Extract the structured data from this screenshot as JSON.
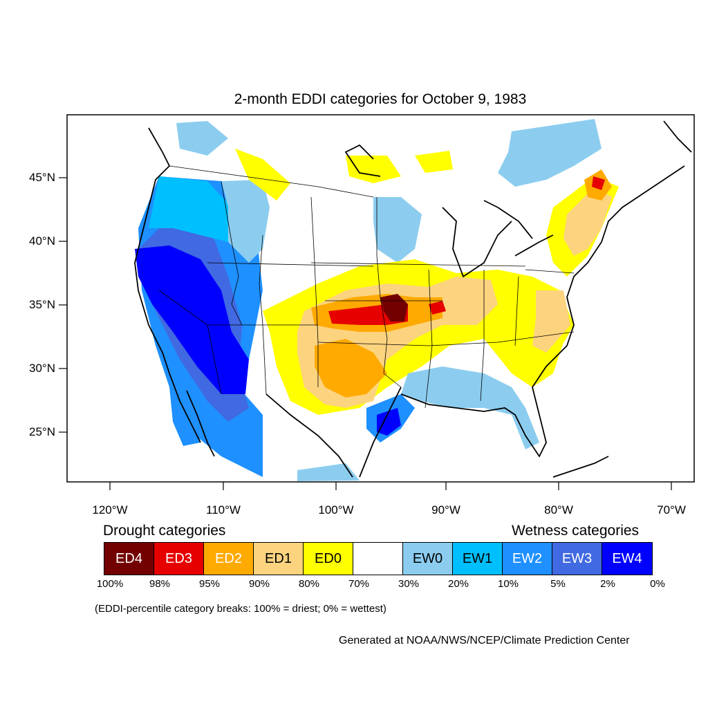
{
  "title": "2-month EDDI categories for October 9, 1983",
  "lat_labels": [
    "45°N",
    "40°N",
    "35°N",
    "30°N",
    "25°N"
  ],
  "lon_labels": [
    "120°W",
    "110°W",
    "100°W",
    "90°W",
    "80°W",
    "70°W"
  ],
  "legend": {
    "drought_heading": "Drought categories",
    "wetness_heading": "Wetness categories",
    "categories": [
      {
        "label": "ED4",
        "color": "#730000",
        "text_color": "#ffffff"
      },
      {
        "label": "ED3",
        "color": "#e60000",
        "text_color": "#ffffff"
      },
      {
        "label": "ED2",
        "color": "#ffaa00",
        "text_color": "#ffffff"
      },
      {
        "label": "ED1",
        "color": "#fcd37f",
        "text_color": "#000000"
      },
      {
        "label": "ED0",
        "color": "#ffff00",
        "text_color": "#000000"
      },
      {
        "label": "",
        "color": "#ffffff",
        "text_color": "#000000"
      },
      {
        "label": "EW0",
        "color": "#8ccdef",
        "text_color": "#000000"
      },
      {
        "label": "EW1",
        "color": "#00bfff",
        "text_color": "#000000"
      },
      {
        "label": "EW2",
        "color": "#1e90ff",
        "text_color": "#ffffff"
      },
      {
        "label": "EW3",
        "color": "#4169e1",
        "text_color": "#ffffff"
      },
      {
        "label": "EW4",
        "color": "#0000ff",
        "text_color": "#ffffff"
      }
    ],
    "breaks": [
      "100%",
      "98%",
      "95%",
      "90%",
      "80%",
      "70%",
      "30%",
      "20%",
      "10%",
      "5%",
      "2%",
      "0%"
    ]
  },
  "note": "(EDDI-percentile category breaks: 100% = driest; 0% = wettest)",
  "credit": "Generated at NOAA/NWS/NCEP/Climate Prediction Center"
}
